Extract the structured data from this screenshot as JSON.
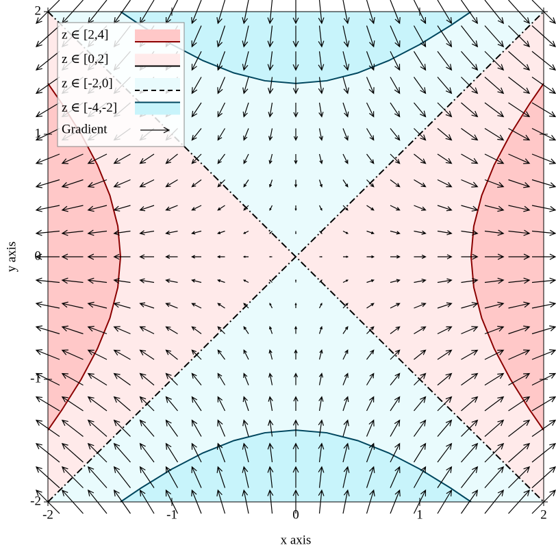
{
  "chart_data": {
    "type": "contour",
    "x_label": "x axis",
    "y_label": "y axis",
    "xlim": [
      -2,
      2
    ],
    "ylim": [
      -2,
      2
    ],
    "xticks": [
      -2,
      -1,
      0,
      1,
      2
    ],
    "yticks": [
      -2,
      -1,
      0,
      1,
      2
    ],
    "series": [
      {
        "name": "z ∈ [2,4]",
        "fill": "#ffc8c8",
        "line_color": "#8b0000",
        "line_dash": "none"
      },
      {
        "name": "z ∈ [0,2]",
        "fill": "#ffeaea",
        "line_color": "#000000",
        "line_dash": "none"
      },
      {
        "name": "z ∈ [-2,0]",
        "fill": "#e9fbfd",
        "line_color": "#000000",
        "line_dash": "7 5"
      },
      {
        "name": "z ∈ [-4,-2]",
        "fill": "#c8f4fb",
        "line_color": "#00465e",
        "line_dash": "none"
      }
    ],
    "contour_lines": [
      {
        "color": "#8b0000",
        "dash": "none",
        "pieces": [
          {
            "x": [
              2,
              1.8875,
              1.7321,
              1.6008,
              1.5,
              1.4361,
              1.4142,
              1.4361,
              1.5,
              1.6008,
              1.7321,
              1.8875,
              2
            ],
            "y": [
              -1.4142,
              -1.25,
              -1,
              -0.75,
              -0.5,
              -0.25,
              0,
              0.25,
              0.5,
              0.75,
              1,
              1.25,
              1.4142
            ]
          },
          {
            "x": [
              -2,
              -1.8875,
              -1.7321,
              -1.6008,
              -1.5,
              -1.4361,
              -1.4142,
              -1.4361,
              -1.5,
              -1.6008,
              -1.7321,
              -1.8875,
              -2
            ],
            "y": [
              -1.4142,
              -1.25,
              -1,
              -0.75,
              -0.5,
              -0.25,
              0,
              0.25,
              0.5,
              0.75,
              1,
              1.25,
              1.4142
            ]
          }
        ]
      },
      {
        "color": "#000000",
        "dash": "10 4 2 4",
        "pieces": [
          {
            "x": [
              -2,
              0,
              2
            ],
            "y": [
              -2,
              0,
              2
            ]
          },
          {
            "x": [
              -2,
              0,
              2
            ],
            "y": [
              2,
              0,
              -2
            ]
          }
        ]
      },
      {
        "color": "#00465e",
        "dash": "none",
        "pieces": [
          {
            "x": [
              -1.4142,
              -1.25,
              -1,
              -0.75,
              -0.5,
              -0.25,
              0,
              0.25,
              0.5,
              0.75,
              1,
              1.25,
              1.4142
            ],
            "y": [
              2,
              1.8875,
              1.7321,
              1.6008,
              1.5,
              1.4361,
              1.4142,
              1.4361,
              1.5,
              1.6008,
              1.7321,
              1.8875,
              2
            ]
          },
          {
            "x": [
              -1.4142,
              -1.25,
              -1,
              -0.75,
              -0.5,
              -0.25,
              0,
              0.25,
              0.5,
              0.75,
              1,
              1.25,
              1.4142
            ],
            "y": [
              -2,
              -1.8875,
              -1.7321,
              -1.6008,
              -1.5,
              -1.4361,
              -1.4142,
              -1.4361,
              -1.5,
              -1.6008,
              -1.7321,
              -1.8875,
              -2
            ]
          }
        ]
      }
    ],
    "gradient": {
      "name": "Gradient",
      "color": "#000000",
      "x": [
        -2,
        -1.8,
        -1.6,
        -1.4,
        -1.2,
        -1,
        -0.8,
        -0.6,
        -0.4,
        -0.2,
        0,
        0.2,
        0.4,
        0.6,
        0.8,
        1,
        1.2,
        1.4,
        1.6,
        1.8,
        2
      ],
      "y": [
        -2,
        -1.8,
        -1.6,
        -1.4,
        -1.2,
        -1,
        -0.8,
        -0.6,
        -0.4,
        -0.2,
        0,
        0.2,
        0.4,
        0.6,
        0.8,
        1,
        1.2,
        1.4,
        1.6,
        1.8,
        2
      ],
      "dx": [
        -4,
        -3.6,
        -3.2,
        -2.8,
        -2.4,
        -2,
        -1.6,
        -1.2,
        -0.8,
        -0.4,
        0,
        0.4,
        0.8,
        1.2,
        1.6,
        2,
        2.4,
        2.8,
        3.2,
        3.6,
        4
      ],
      "dy": [
        4,
        3.6,
        3.2,
        2.8,
        2.4,
        2,
        1.6,
        1.2,
        0.8,
        0.4,
        0,
        -0.4,
        -0.8,
        -1.2,
        -1.6,
        -2,
        -2.4,
        -2.8,
        -3.2,
        -3.6,
        -4
      ]
    }
  }
}
